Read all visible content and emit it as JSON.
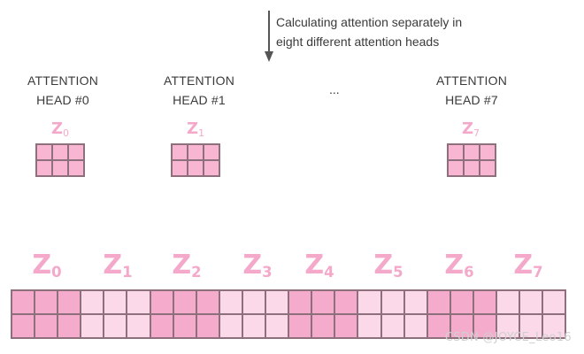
{
  "caption": {
    "line1": "Calculating attention separately in",
    "line2": "eight different attention heads"
  },
  "heads": [
    {
      "title1": "ATTENTION",
      "title2": "HEAD #0",
      "z": "Z",
      "sub": "0"
    },
    {
      "title1": "ATTENTION",
      "title2": "HEAD #1",
      "z": "Z",
      "sub": "1"
    },
    {
      "title1": "ATTENTION",
      "title2": "HEAD #7",
      "z": "Z",
      "sub": "7"
    }
  ],
  "ellipsis": "...",
  "concat": [
    {
      "z": "Z",
      "sub": "0"
    },
    {
      "z": "Z",
      "sub": "1"
    },
    {
      "z": "Z",
      "sub": "2"
    },
    {
      "z": "Z",
      "sub": "3"
    },
    {
      "z": "Z",
      "sub": "4"
    },
    {
      "z": "Z",
      "sub": "5"
    },
    {
      "z": "Z",
      "sub": "6"
    },
    {
      "z": "Z",
      "sub": "7"
    }
  ],
  "colors": {
    "pink_dark": "#f5abcb",
    "pink_light": "#fcd9e8",
    "label_pink": "#f4a9cb",
    "grid_border": "#8e6f7c"
  },
  "watermark": "CSDN @JOYCE_Leo16"
}
